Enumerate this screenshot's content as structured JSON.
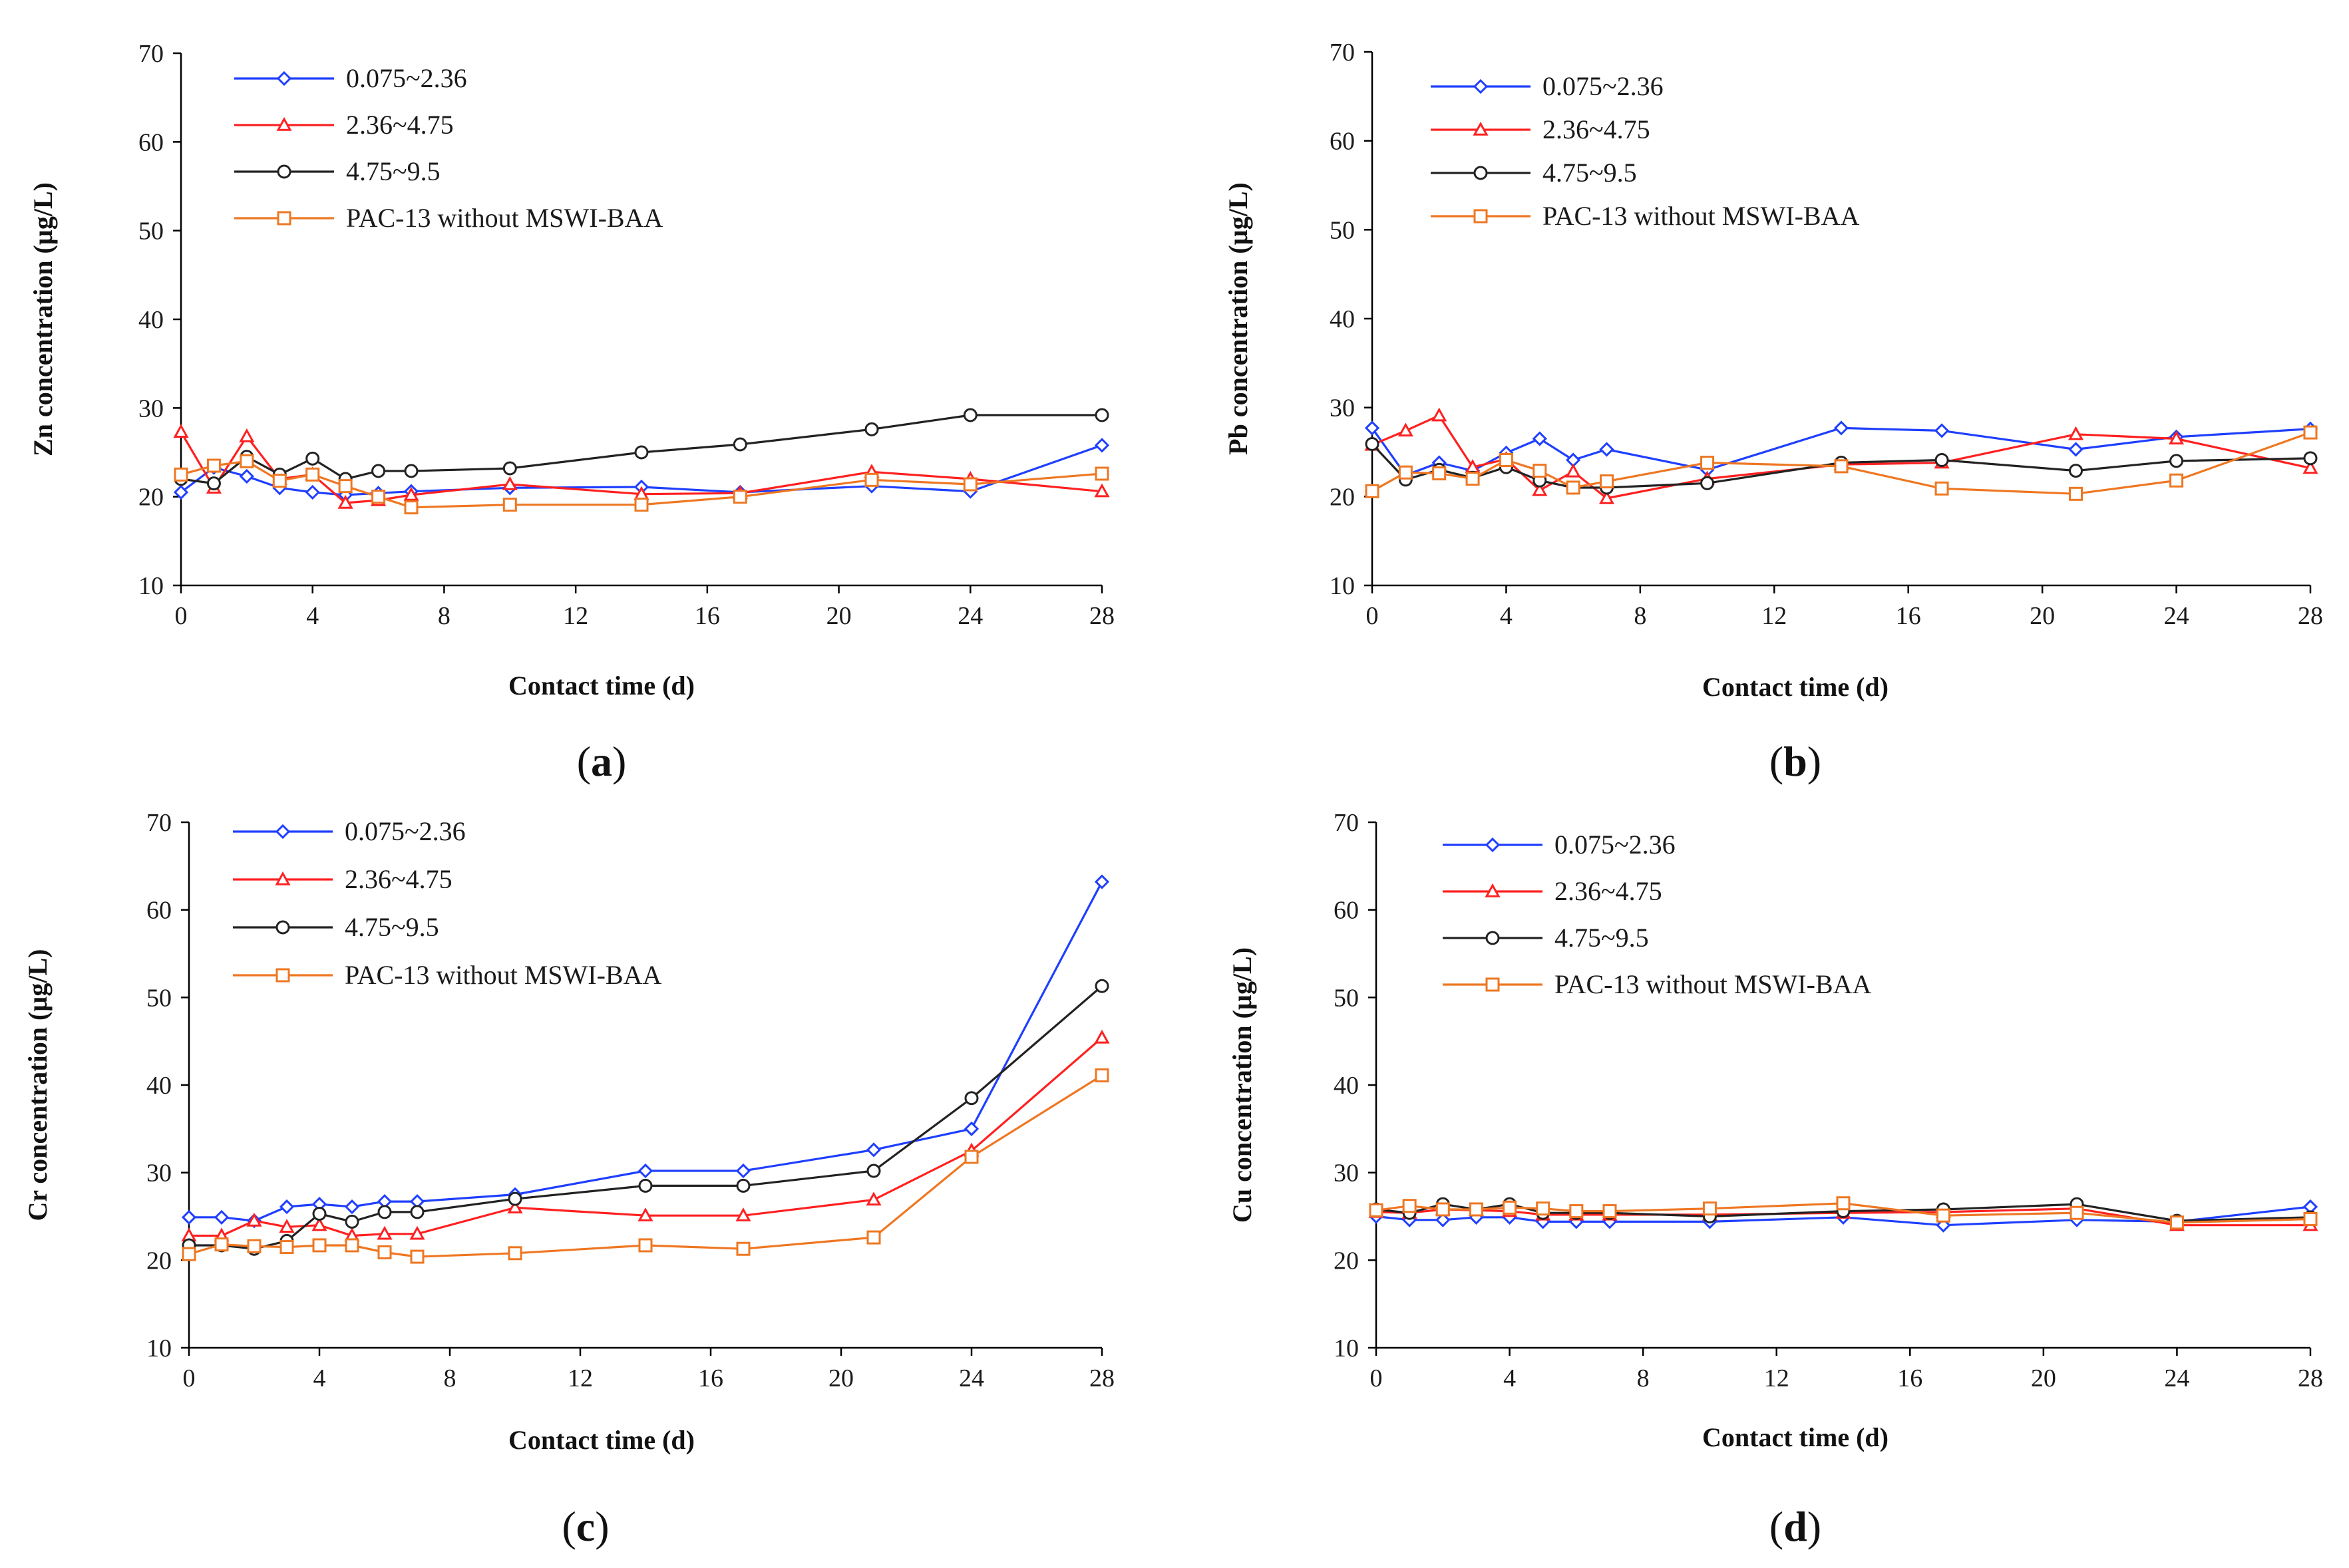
{
  "chart_data": [
    {
      "type": "line",
      "panel_label": "a",
      "xlabel": "Contact time (d)",
      "ylabel": "Zn concentration (µg/L)",
      "xlim": [
        0,
        28
      ],
      "ylim": [
        10,
        70
      ],
      "xticks": [
        0,
        4,
        8,
        12,
        16,
        20,
        24,
        28
      ],
      "yticks": [
        10,
        20,
        30,
        40,
        50,
        60,
        70
      ],
      "legend_position": "top-left",
      "x": [
        0,
        1,
        2,
        3,
        4,
        5,
        6,
        7,
        10,
        14,
        17,
        21,
        24,
        28
      ],
      "series": [
        {
          "name": "0.075~2.36",
          "color": "#1f3fff",
          "marker": "diamond",
          "values": [
            20.5,
            23.3,
            22.3,
            21.0,
            20.5,
            20.2,
            20.4,
            20.6,
            21.0,
            21.1,
            20.5,
            21.2,
            20.6,
            25.8
          ]
        },
        {
          "name": "2.36~4.75",
          "color": "#ff2020",
          "marker": "triangle",
          "values": [
            27.3,
            21.0,
            26.8,
            22.0,
            22.5,
            19.3,
            19.6,
            20.2,
            21.4,
            20.3,
            20.4,
            22.8,
            22.0,
            20.6
          ]
        },
        {
          "name": "4.75~9.5",
          "color": "#222222",
          "marker": "circle",
          "values": [
            22.0,
            21.5,
            24.5,
            22.5,
            24.3,
            22.0,
            22.9,
            22.9,
            23.2,
            25.0,
            25.9,
            27.6,
            29.2,
            29.2
          ]
        },
        {
          "name": "PAC-13 without MSWI-BAA",
          "color": "#ee7722",
          "marker": "square",
          "values": [
            22.5,
            23.5,
            24.0,
            21.8,
            22.5,
            21.2,
            20.0,
            18.8,
            19.1,
            19.1,
            20.0,
            21.9,
            21.4,
            22.6
          ]
        }
      ]
    },
    {
      "type": "line",
      "panel_label": "b",
      "xlabel": "Contact time (d)",
      "ylabel": "Pb concentration (µg/L)",
      "xlim": [
        0,
        28
      ],
      "ylim": [
        10,
        70
      ],
      "xticks": [
        0,
        4,
        8,
        12,
        16,
        20,
        24,
        28
      ],
      "yticks": [
        10,
        20,
        30,
        40,
        50,
        60,
        70
      ],
      "legend_position": "top-left",
      "x": [
        0,
        1,
        2,
        3,
        4,
        5,
        6,
        7,
        10,
        14,
        17,
        21,
        24,
        28
      ],
      "series": [
        {
          "name": "0.075~2.36",
          "color": "#1f3fff",
          "marker": "diamond",
          "values": [
            27.7,
            22.4,
            23.8,
            22.9,
            24.9,
            26.5,
            24.1,
            25.3,
            23.0,
            27.7,
            27.4,
            25.3,
            26.7,
            27.6
          ]
        },
        {
          "name": "2.36~4.75",
          "color": "#ff2020",
          "marker": "triangle",
          "values": [
            25.8,
            27.4,
            29.1,
            23.3,
            24.2,
            20.7,
            22.8,
            19.8,
            22.0,
            23.6,
            23.8,
            27.0,
            26.5,
            23.2
          ]
        },
        {
          "name": "4.75~9.5",
          "color": "#222222",
          "marker": "circle",
          "values": [
            25.9,
            21.9,
            23.0,
            22.1,
            23.3,
            21.8,
            21.0,
            21.0,
            21.5,
            23.8,
            24.1,
            22.9,
            24.0,
            24.3
          ]
        },
        {
          "name": "PAC-13 without MSWI-BAA",
          "color": "#ee7722",
          "marker": "square",
          "values": [
            20.6,
            22.7,
            22.6,
            22.0,
            24.1,
            22.9,
            21.0,
            21.7,
            23.8,
            23.4,
            20.9,
            20.3,
            21.8,
            27.2
          ]
        }
      ]
    },
    {
      "type": "line",
      "panel_label": "c",
      "xlabel": "Contact time (d)",
      "ylabel": "Cr concentration (µg/L)",
      "xlim": [
        0,
        28
      ],
      "ylim": [
        10,
        70
      ],
      "xticks": [
        0,
        4,
        8,
        12,
        16,
        20,
        24,
        28
      ],
      "yticks": [
        10,
        20,
        30,
        40,
        50,
        60,
        70
      ],
      "legend_position": "top-left",
      "x": [
        0,
        1,
        2,
        3,
        4,
        5,
        6,
        7,
        10,
        14,
        17,
        21,
        24,
        28
      ],
      "series": [
        {
          "name": "0.075~2.36",
          "color": "#1f3fff",
          "marker": "diamond",
          "values": [
            24.9,
            24.9,
            24.5,
            26.1,
            26.4,
            26.1,
            26.7,
            26.7,
            27.5,
            30.2,
            30.2,
            32.6,
            35.0,
            63.2
          ]
        },
        {
          "name": "2.36~4.75",
          "color": "#ff2020",
          "marker": "triangle",
          "values": [
            22.8,
            22.8,
            24.5,
            23.8,
            24.0,
            22.8,
            23.0,
            23.0,
            26.0,
            25.1,
            25.1,
            26.9,
            32.5,
            45.4
          ]
        },
        {
          "name": "4.75~9.5",
          "color": "#222222",
          "marker": "circle",
          "values": [
            21.7,
            21.7,
            21.3,
            22.2,
            25.3,
            24.4,
            25.5,
            25.5,
            27.0,
            28.5,
            28.5,
            30.2,
            38.5,
            51.3
          ]
        },
        {
          "name": "PAC-13 without MSWI-BAA",
          "color": "#ee7722",
          "marker": "square",
          "values": [
            20.7,
            21.8,
            21.6,
            21.5,
            21.7,
            21.7,
            20.9,
            20.4,
            20.8,
            21.7,
            21.3,
            22.6,
            31.8,
            41.1
          ]
        }
      ]
    },
    {
      "type": "line",
      "panel_label": "d",
      "xlabel": "Contact time (d)",
      "ylabel": "Cu concentration (µg/L)",
      "xlim": [
        0,
        28
      ],
      "ylim": [
        10,
        70
      ],
      "xticks": [
        0,
        4,
        8,
        12,
        16,
        20,
        24,
        28
      ],
      "yticks": [
        10,
        20,
        30,
        40,
        50,
        60,
        70
      ],
      "legend_position": "top-left",
      "x": [
        0,
        1,
        2,
        3,
        4,
        5,
        6,
        7,
        10,
        14,
        17,
        21,
        24,
        28
      ],
      "series": [
        {
          "name": "0.075~2.36",
          "color": "#1f3fff",
          "marker": "diamond",
          "values": [
            25.0,
            24.6,
            24.6,
            24.9,
            24.9,
            24.4,
            24.4,
            24.4,
            24.4,
            24.9,
            24.0,
            24.6,
            24.4,
            26.1
          ]
        },
        {
          "name": "2.36~4.75",
          "color": "#ff2020",
          "marker": "triangle",
          "values": [
            25.5,
            25.4,
            25.8,
            25.7,
            25.6,
            25.2,
            25.2,
            25.2,
            25.2,
            25.4,
            25.5,
            25.9,
            24.0,
            24.0
          ]
        },
        {
          "name": "4.75~9.5",
          "color": "#222222",
          "marker": "circle",
          "values": [
            25.8,
            25.4,
            26.4,
            25.8,
            26.4,
            25.4,
            25.4,
            25.4,
            25.0,
            25.6,
            25.8,
            26.4,
            24.5,
            24.9
          ]
        },
        {
          "name": "PAC-13 without MSWI-BAA",
          "color": "#ee7722",
          "marker": "square",
          "values": [
            25.7,
            26.2,
            25.8,
            25.8,
            26.0,
            25.9,
            25.6,
            25.6,
            25.9,
            26.5,
            25.1,
            25.4,
            24.3,
            24.7
          ]
        }
      ]
    }
  ]
}
